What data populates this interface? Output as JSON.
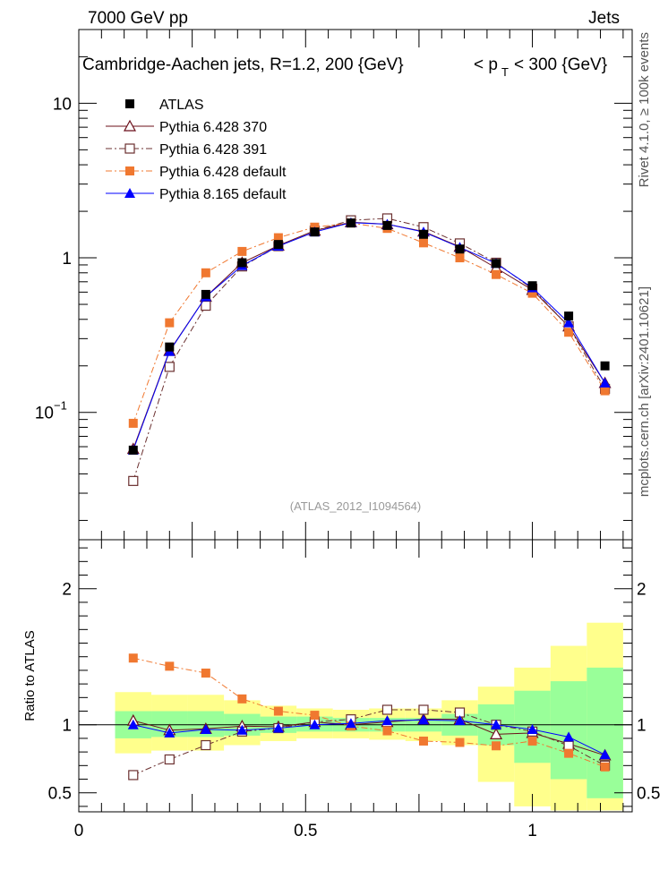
{
  "header": {
    "energy_label": "7000 GeV pp",
    "category_label": "Jets"
  },
  "side_text": {
    "rivet": "Rivet 4.1.0, ≥ 100k events",
    "mcplots": "mcplots.cern.ch [arXiv:2401.10621]"
  },
  "plot_title": {
    "main": "Cambridge-Aachen jets, R=1.2,  200 {GeV}",
    "pt_prefix": "< p",
    "pt_sub": "T",
    "pt_suffix": "< 300 {GeV}"
  },
  "analysis_tag": "(ATLAS_2012_I1094564)",
  "ratio_ylabel": "Ratio to ATLAS",
  "chart_data": [
    {
      "type": "line",
      "scale": "log",
      "ylim": [
        0.015,
        30
      ],
      "xlim": [
        0,
        1.22
      ],
      "yticks": [
        {
          "value": 10,
          "label": "10"
        },
        {
          "value": 1,
          "label": "1"
        },
        {
          "value": 0.1,
          "label": "10",
          "sup": "−1"
        }
      ],
      "x": [
        0.12,
        0.2,
        0.28,
        0.36,
        0.44,
        0.52,
        0.6,
        0.68,
        0.76,
        0.84,
        0.92,
        1.0,
        1.08,
        1.16
      ],
      "series": [
        {
          "name": "ATLAS",
          "color": "#000000",
          "marker": "filled-square",
          "line": "none",
          "values": [
            0.057,
            0.265,
            0.58,
            0.93,
            1.22,
            1.47,
            1.68,
            1.62,
            1.42,
            1.14,
            0.92,
            0.66,
            0.42,
            0.2
          ]
        },
        {
          "name": "Pythia 6.428 370",
          "color": "#6b0f1a",
          "marker": "open-triangle",
          "line": "solid",
          "values": [
            0.058,
            0.25,
            0.56,
            0.93,
            1.2,
            1.5,
            1.7,
            1.65,
            1.48,
            1.18,
            0.86,
            0.62,
            0.36,
            0.155
          ]
        },
        {
          "name": "Pythia 6.428 391",
          "color": "#6b3030",
          "marker": "open-square",
          "line": "dashdot",
          "values": [
            0.036,
            0.197,
            0.49,
            0.88,
            1.19,
            1.5,
            1.75,
            1.8,
            1.58,
            1.24,
            0.93,
            0.63,
            0.36,
            0.142
          ]
        },
        {
          "name": "Pythia 6.428 default",
          "color": "#f07830",
          "marker": "filled-square",
          "line": "dashdot",
          "values": [
            0.085,
            0.38,
            0.8,
            1.1,
            1.35,
            1.58,
            1.68,
            1.55,
            1.25,
            1.0,
            0.78,
            0.59,
            0.33,
            0.138
          ]
        },
        {
          "name": "Pythia 8.165 default",
          "color": "#0000ff",
          "marker": "filled-triangle",
          "line": "solid",
          "values": [
            0.057,
            0.248,
            0.56,
            0.89,
            1.19,
            1.47,
            1.69,
            1.65,
            1.47,
            1.17,
            0.92,
            0.64,
            0.38,
            0.155
          ]
        }
      ]
    },
    {
      "type": "line",
      "title": "Ratio to ATLAS",
      "ylabel": "Ratio to ATLAS",
      "ylim": [
        0.36,
        2.36
      ],
      "xlim": [
        0,
        1.22
      ],
      "yticks": [
        {
          "value": 2,
          "label": "2"
        },
        {
          "value": 1,
          "label": "1"
        },
        {
          "value": 0.5,
          "label": "0.5"
        }
      ],
      "xticks": [
        {
          "value": 0,
          "label": "0"
        },
        {
          "value": 0.5,
          "label": "0.5"
        },
        {
          "value": 1,
          "label": "1"
        }
      ],
      "x": [
        0.12,
        0.2,
        0.28,
        0.36,
        0.44,
        0.52,
        0.6,
        0.68,
        0.76,
        0.84,
        0.92,
        1.0,
        1.08,
        1.16
      ],
      "bands": {
        "edges": [
          0.08,
          0.16,
          0.24,
          0.32,
          0.4,
          0.48,
          0.56,
          0.64,
          0.72,
          0.8,
          0.88,
          0.96,
          1.04,
          1.12,
          1.2
        ],
        "yellow": [
          [
            0.79,
            1.24
          ],
          [
            0.81,
            1.22
          ],
          [
            0.81,
            1.22
          ],
          [
            0.85,
            1.18
          ],
          [
            0.88,
            1.14
          ],
          [
            0.9,
            1.12
          ],
          [
            0.9,
            1.11
          ],
          [
            0.89,
            1.12
          ],
          [
            0.88,
            1.12
          ],
          [
            0.85,
            1.18
          ],
          [
            0.58,
            1.28
          ],
          [
            0.4,
            1.42
          ],
          [
            0.37,
            1.58
          ],
          [
            0.37,
            1.75
          ]
        ],
        "green": [
          [
            0.9,
            1.1
          ],
          [
            0.91,
            1.1
          ],
          [
            0.91,
            1.1
          ],
          [
            0.92,
            1.08
          ],
          [
            0.94,
            1.06
          ],
          [
            0.95,
            1.06
          ],
          [
            0.95,
            1.05
          ],
          [
            0.95,
            1.05
          ],
          [
            0.95,
            1.05
          ],
          [
            0.92,
            1.08
          ],
          [
            0.85,
            1.15
          ],
          [
            0.72,
            1.25
          ],
          [
            0.6,
            1.32
          ],
          [
            0.46,
            1.42
          ]
        ]
      },
      "series": [
        {
          "name": "Pythia 6.428 370",
          "color": "#6b0f1a",
          "marker": "open-triangle",
          "line": "solid",
          "values": [
            1.03,
            0.96,
            0.97,
            0.99,
            0.985,
            1.02,
            1.0,
            1.02,
            1.04,
            1.04,
            0.93,
            0.94,
            0.86,
            0.775
          ]
        },
        {
          "name": "Pythia 6.428 391",
          "color": "#6b3030",
          "marker": "open-square",
          "line": "dashdot",
          "values": [
            0.63,
            0.745,
            0.85,
            0.95,
            0.975,
            1.02,
            1.04,
            1.11,
            1.11,
            1.09,
            1.0,
            0.95,
            0.845,
            0.7
          ]
        },
        {
          "name": "Pythia 6.428 default",
          "color": "#f07830",
          "marker": "filled-square",
          "line": "dashdot",
          "values": [
            1.49,
            1.43,
            1.38,
            1.19,
            1.1,
            1.07,
            0.99,
            0.955,
            0.88,
            0.87,
            0.845,
            0.88,
            0.79,
            0.69
          ]
        },
        {
          "name": "Pythia 8.165 default",
          "color": "#0000ff",
          "marker": "filled-triangle",
          "line": "solid",
          "values": [
            1.0,
            0.94,
            0.965,
            0.96,
            0.975,
            1.0,
            1.01,
            1.03,
            1.035,
            1.03,
            1.0,
            0.965,
            0.91,
            0.78
          ]
        }
      ]
    }
  ]
}
